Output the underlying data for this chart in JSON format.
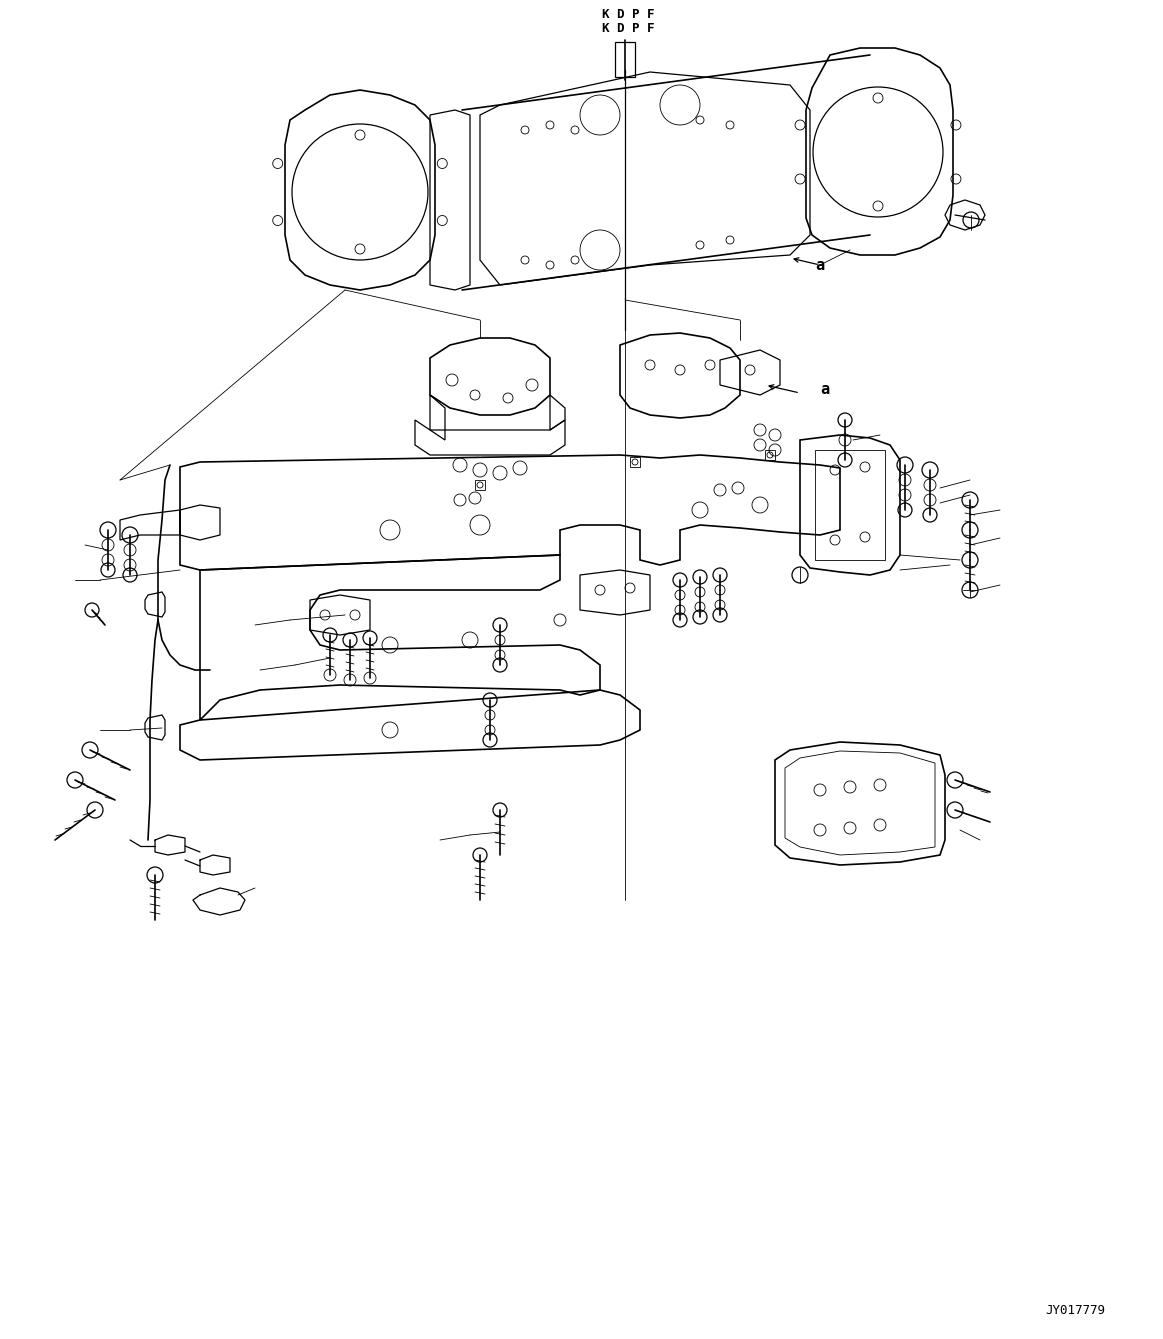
{
  "background_color": "#ffffff",
  "line_color": "#000000",
  "text_color": "#000000",
  "title_kdpf1": "K D P F",
  "title_kdpf2": "K D P F",
  "watermark": "JY017779",
  "label_a": "a",
  "fig_width": 11.63,
  "fig_height": 13.39,
  "dpi": 100
}
